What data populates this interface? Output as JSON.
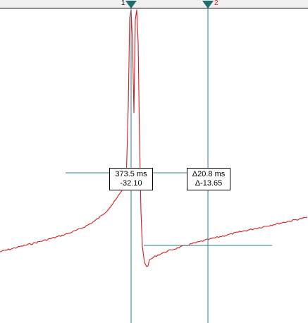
{
  "cursor1": {
    "label": "1",
    "readout_time": "373.5 ms",
    "readout_value": "-32.10"
  },
  "cursor2": {
    "label": "2",
    "readout_delta_time": "Δ20.8 ms",
    "readout_delta_value": "Δ-13.65"
  },
  "colors": {
    "trace": "#d41c1c",
    "cursor_line": "#2a7f91",
    "cursor_handle": "#1f6e6e",
    "cursor1_label": "#1a1a1a",
    "cursor2_label": "#d41c1c"
  },
  "icons": {
    "cursor_handle": "triangle-down-icon"
  }
}
